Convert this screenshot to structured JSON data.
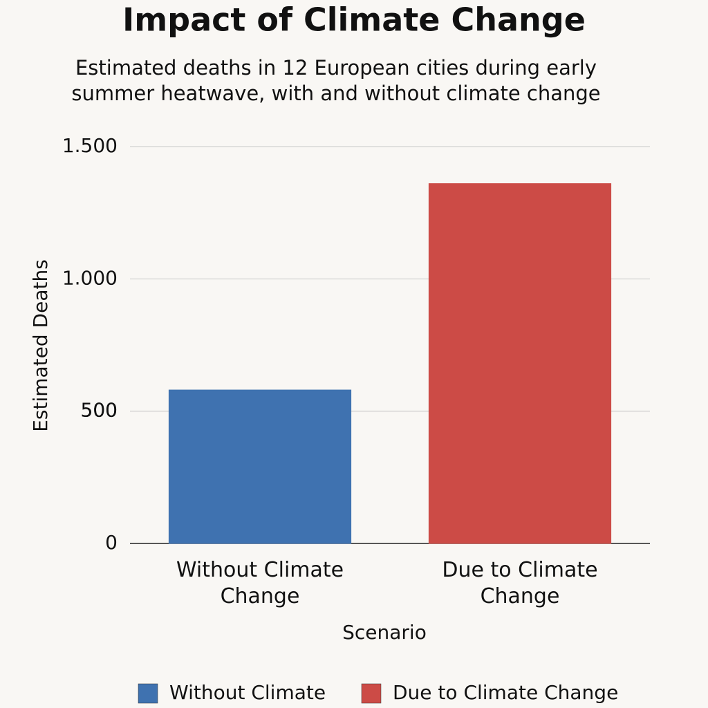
{
  "chart_data": {
    "type": "bar",
    "title": "Impact of Climate Change",
    "subtitle": [
      "Estimated deaths in 12 European cities during early",
      "summer heatwave, with and without climate change"
    ],
    "y_label": "Estimated Deaths",
    "x_label": "Scenario",
    "categories": [
      "Without Climate Change",
      "Due to Climate Change"
    ],
    "values": [
      580,
      1360
    ],
    "colors": [
      "#3f72b0",
      "#cc4b46"
    ],
    "ylim": [
      0,
      1500
    ],
    "yticks": [
      0,
      500,
      500,
      {
        "value": 1000,
        "label": "1.000"
      },
      {
        "value": 1500,
        "label": "1.500"
      }
    ],
    "grid": true,
    "legend": [
      {
        "name": "Without Climate",
        "color": "#3f72b0"
      },
      {
        "name": "Due to Climate Change",
        "color": "#cc4b46"
      }
    ]
  }
}
